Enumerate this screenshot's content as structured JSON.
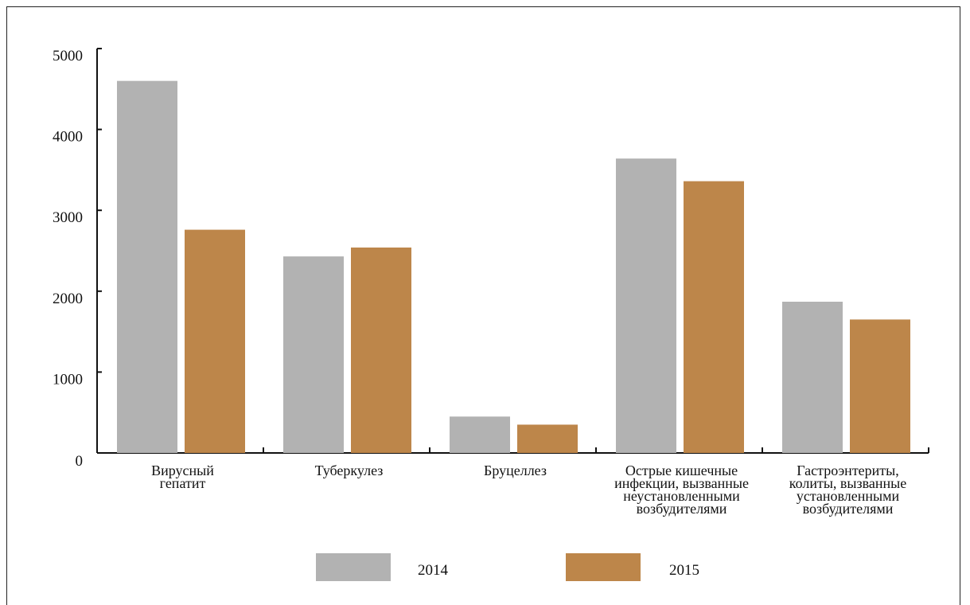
{
  "chart_data": {
    "type": "bar",
    "title": "",
    "xlabel": "",
    "ylabel": "",
    "ylim": [
      0,
      5000
    ],
    "yticks": [
      0,
      1000,
      2000,
      3000,
      4000,
      5000
    ],
    "grid": false,
    "legend_position": "bottom",
    "categories": [
      [
        "Вирусный",
        "гепатит"
      ],
      [
        "Туберкулез"
      ],
      [
        "Бруцеллез"
      ],
      [
        "Острые кишечные",
        "инфекции, вызванные",
        "неустановленными",
        "возбудителями"
      ],
      [
        "Гастроэнтериты,",
        "колиты, вызванные",
        "установленными",
        "возбудителями"
      ]
    ],
    "series": [
      {
        "name": "2014",
        "color": "#b2b2b2",
        "values": [
          4600,
          2430,
          450,
          3640,
          1870
        ]
      },
      {
        "name": "2015",
        "color": "#bd864a",
        "values": [
          2760,
          2540,
          350,
          3360,
          1650
        ]
      }
    ]
  }
}
